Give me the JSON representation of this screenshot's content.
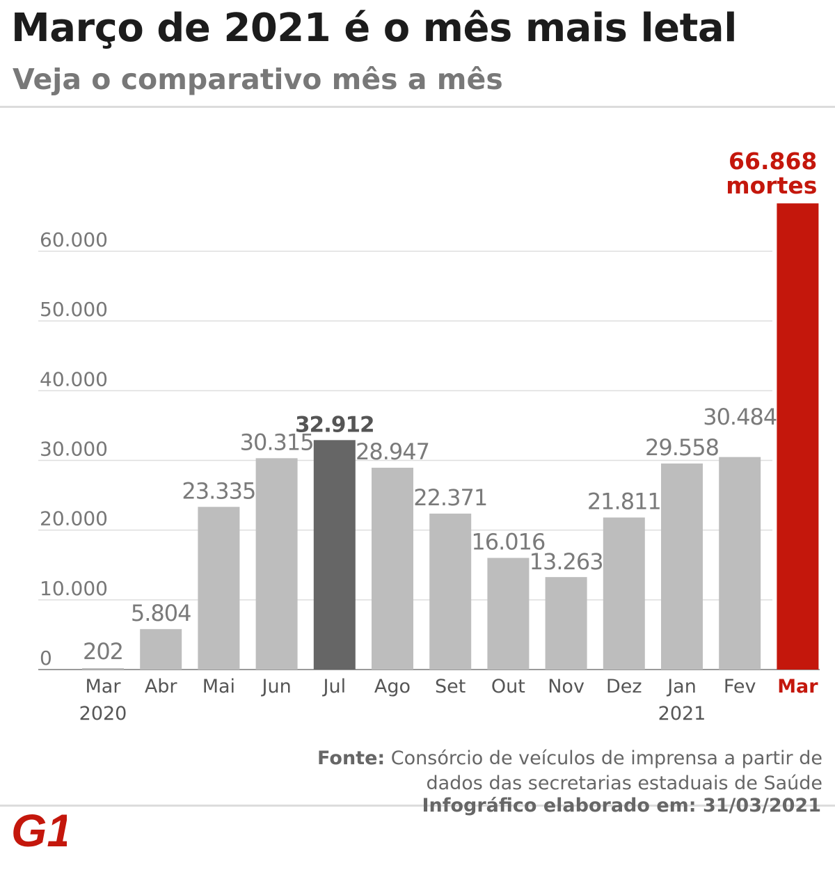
{
  "header": {
    "title": "Março de 2021 é o mês mais letal",
    "subtitle": "Veja o comparativo mês a mês"
  },
  "chart_data": {
    "type": "bar",
    "title": "Março de 2021 é o mês mais letal",
    "subtitle": "Veja o comparativo mês a mês",
    "categories": [
      "Mar",
      "Abr",
      "Mai",
      "Jun",
      "Jul",
      "Ago",
      "Set",
      "Out",
      "Nov",
      "Dez",
      "Jan",
      "Fev",
      "Mar"
    ],
    "year_labels": [
      "2020",
      "",
      "",
      "",
      "",
      "",
      "",
      "",
      "",
      "",
      "2021",
      "",
      ""
    ],
    "values": [
      202,
      5804,
      23335,
      30315,
      32912,
      28947,
      22371,
      16016,
      13263,
      21811,
      29558,
      30484,
      66868
    ],
    "value_labels": [
      "202",
      "5.804",
      "23.335",
      "30.315",
      "32.912",
      "28.947",
      "22.371",
      "16.016",
      "13.263",
      "21.811",
      "29.558",
      "30.484",
      "66.868"
    ],
    "highlight_label_suffix": "mortes",
    "bar_colors": [
      "#bdbdbd",
      "#bdbdbd",
      "#bdbdbd",
      "#bdbdbd",
      "#666666",
      "#bdbdbd",
      "#bdbdbd",
      "#bdbdbd",
      "#bdbdbd",
      "#bdbdbd",
      "#bdbdbd",
      "#bdbdbd",
      "#c4170c"
    ],
    "yticks": [
      0,
      10000,
      20000,
      30000,
      40000,
      50000,
      60000
    ],
    "ytick_labels": [
      "0",
      "10.000",
      "20.000",
      "30.000",
      "40.000",
      "50.000",
      "60.000"
    ],
    "ylim": [
      0,
      66868
    ],
    "xlabel": "",
    "ylabel": "",
    "grid": true
  },
  "footer": {
    "source_label": "Fonte:",
    "source_text": "Consórcio de veículos de imprensa a partir de dados das secretarias estaduais de Saúde",
    "date_text": "Infográfico elaborado em: 31/03/2021",
    "logo_text": "G1"
  },
  "colors": {
    "accent": "#c4170c",
    "highlight_bar": "#666666",
    "bar": "#bdbdbd",
    "grid": "#dedede",
    "axis_text": "#777777",
    "label_text": "#7a7a7a"
  }
}
